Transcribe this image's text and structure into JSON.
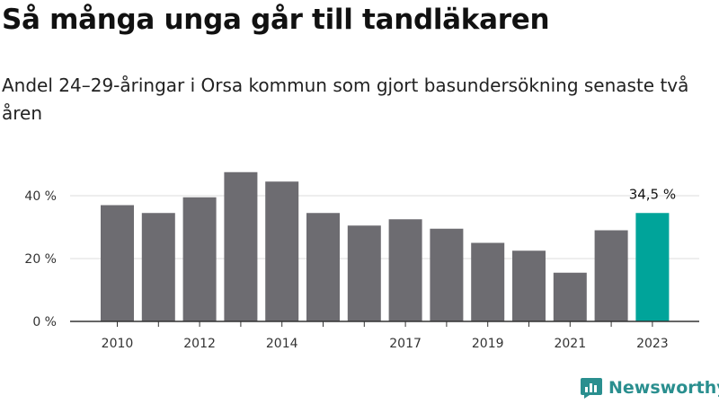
{
  "header": {
    "title": "Så många unga går till tandläkaren",
    "subtitle": "Andel 24–29-åringar i Orsa kommun som gjort basundersökning senaste två åren"
  },
  "chart_data": {
    "type": "bar",
    "categories": [
      "2010",
      "2011",
      "2012",
      "2013",
      "2014",
      "2015",
      "2016",
      "2017",
      "2018",
      "2019",
      "2020",
      "2021",
      "2022",
      "2023"
    ],
    "x_tick_labels": [
      "2010",
      "",
      "2012",
      "",
      "2014",
      "",
      "",
      "2017",
      "",
      "2019",
      "",
      "2021",
      "",
      "2023"
    ],
    "values": [
      37,
      34.5,
      39.5,
      47.5,
      44.5,
      34.5,
      30.5,
      32.5,
      29.5,
      25,
      22.5,
      15.5,
      29,
      34.5
    ],
    "y_ticks": [
      0,
      20,
      40
    ],
    "y_tick_labels": [
      "0 %",
      "20 %",
      "40 %"
    ],
    "ylim": [
      0,
      50
    ],
    "highlight_index": 13,
    "highlight_label": "34,5 %",
    "bar_color": "#6d6c71",
    "highlight_color": "#00a49a",
    "grid": true
  },
  "brand": {
    "name": "Newsworthy",
    "icon": "newsworthy-logo-icon",
    "color": "#2a8f8f"
  }
}
